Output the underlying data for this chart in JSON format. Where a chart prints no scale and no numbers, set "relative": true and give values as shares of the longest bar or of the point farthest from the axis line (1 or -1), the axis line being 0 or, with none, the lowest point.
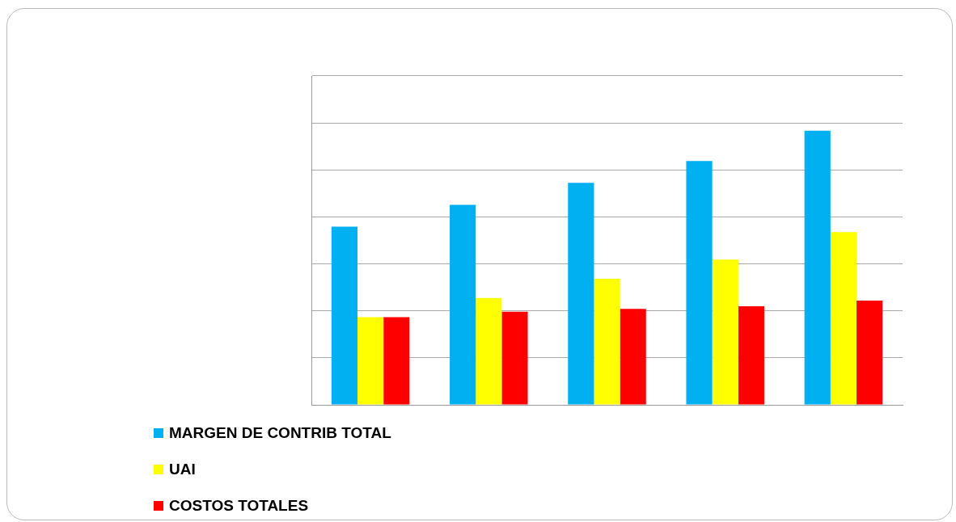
{
  "chart_data": {
    "type": "bar",
    "relative": true,
    "categories": [
      null,
      null,
      null,
      null,
      null
    ],
    "series": [
      {
        "name": "MARGEN DE CONTRIB TOTAL",
        "color": "#00b0f0",
        "values": [
          0.65,
          0.73,
          0.81,
          0.89,
          1
        ]
      },
      {
        "name": "UAI",
        "color": "#ffff00",
        "values": [
          0.32,
          0.39,
          0.46,
          0.53,
          0.63
        ]
      },
      {
        "name": "COSTOS TOTALES",
        "color": "#ff0000",
        "values": [
          0.32,
          0.34,
          0.35,
          0.36,
          0.38
        ]
      }
    ],
    "grid": "y",
    "legend": "bottom left"
  }
}
